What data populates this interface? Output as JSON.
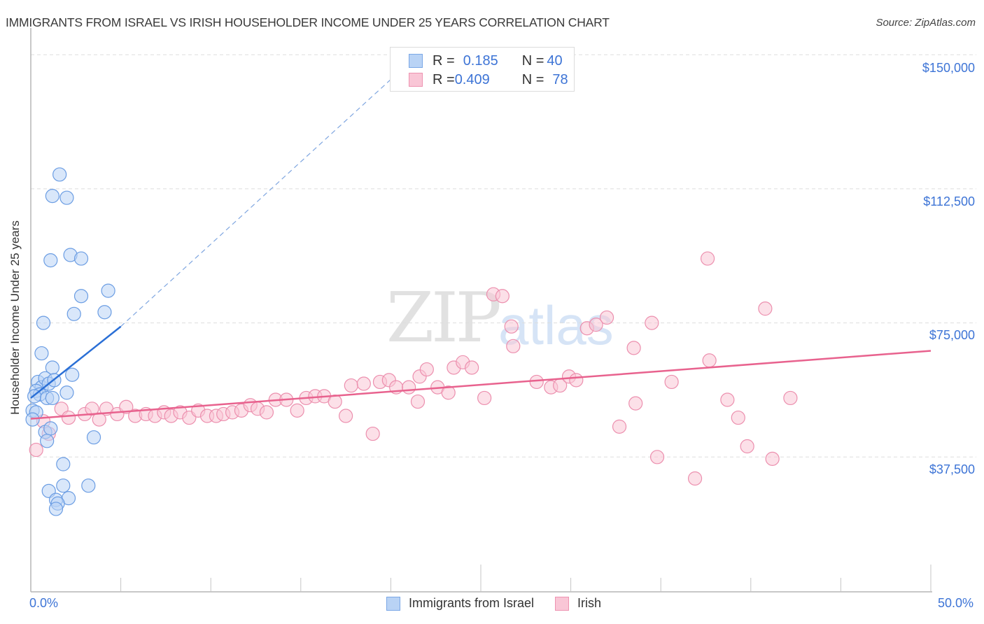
{
  "header": {
    "title": "IMMIGRANTS FROM ISRAEL VS IRISH HOUSEHOLDER INCOME UNDER 25 YEARS CORRELATION CHART",
    "source": "Source: ZipAtlas.com"
  },
  "legend_top": {
    "rows": [
      {
        "r_label": "R = ",
        "r_value": "0.185",
        "n_label": "N = ",
        "n_value": "40",
        "color": "#b9d3f5",
        "border": "#7aa7e6"
      },
      {
        "r_label": "R = ",
        "r_value": "0.409",
        "n_label": "N = ",
        "n_value": "78",
        "color": "#f9c6d6",
        "border": "#ee93b1"
      }
    ]
  },
  "legend_bottom": {
    "items": [
      {
        "label": "Immigrants from Israel",
        "color": "#b9d3f5",
        "border": "#7aa7e6"
      },
      {
        "label": "Irish",
        "color": "#f9c6d6",
        "border": "#ee93b1"
      }
    ]
  },
  "axes": {
    "y_title": "Householder Income Under 25 years",
    "y_ticks": [
      "$150,000",
      "$112,500",
      "$75,000",
      "$37,500"
    ],
    "x_min_label": "0.0%",
    "x_max_label": "50.0%"
  },
  "watermark": {
    "zip": "ZIP",
    "atlas": "atlas"
  },
  "colors": {
    "blue": "#3d74d6",
    "blue_line": "#2a6fd6",
    "pink_line": "#e8628e",
    "blue_fill": "#b9d3f5",
    "pink_fill": "#f9c6d6"
  },
  "chart_data": {
    "type": "scatter",
    "title": "IMMIGRANTS FROM ISRAEL VS IRISH HOUSEHOLDER INCOME UNDER 25 YEARS CORRELATION CHART",
    "xlabel": "",
    "ylabel": "Householder Income Under 25 years",
    "xlim": [
      0,
      50
    ],
    "ylim": [
      0,
      155000
    ],
    "x_unit": "%",
    "y_ticks": [
      37500,
      75000,
      112500,
      150000
    ],
    "grid": true,
    "legend_position": "bottom",
    "series": [
      {
        "name": "Immigrants from Israel",
        "R": 0.185,
        "N": 40,
        "color": "#b9d3f5",
        "trend": {
          "x": [
            0,
            5.0
          ],
          "y": [
            54000,
            74000
          ],
          "extended_dashed_to": [
            21.5,
            150000
          ]
        },
        "points": [
          [
            1.6,
            116500
          ],
          [
            1.2,
            110500
          ],
          [
            2.0,
            110000
          ],
          [
            1.1,
            92500
          ],
          [
            2.2,
            94000
          ],
          [
            2.8,
            93000
          ],
          [
            2.8,
            82500
          ],
          [
            2.4,
            77500
          ],
          [
            4.3,
            84000
          ],
          [
            4.1,
            78000
          ],
          [
            0.7,
            75000
          ],
          [
            0.6,
            66500
          ],
          [
            1.2,
            62500
          ],
          [
            2.3,
            60500
          ],
          [
            0.4,
            58500
          ],
          [
            0.6,
            57000
          ],
          [
            0.3,
            56000
          ],
          [
            0.8,
            59500
          ],
          [
            1.0,
            58000
          ],
          [
            1.3,
            59000
          ],
          [
            0.5,
            55000
          ],
          [
            0.2,
            54500
          ],
          [
            2.0,
            55500
          ],
          [
            0.9,
            54000
          ],
          [
            1.2,
            54000
          ],
          [
            0.1,
            50500
          ],
          [
            0.3,
            50000
          ],
          [
            0.8,
            44500
          ],
          [
            1.1,
            45500
          ],
          [
            0.9,
            42000
          ],
          [
            3.5,
            43000
          ],
          [
            1.8,
            35500
          ],
          [
            1.0,
            28000
          ],
          [
            1.8,
            29500
          ],
          [
            3.2,
            29500
          ],
          [
            1.4,
            25500
          ],
          [
            2.1,
            26000
          ],
          [
            1.5,
            24500
          ],
          [
            1.4,
            23000
          ],
          [
            0.1,
            48000
          ]
        ]
      },
      {
        "name": "Irish",
        "R": 0.409,
        "N": 78,
        "color": "#f9c6d6",
        "trend": {
          "x": [
            0,
            50
          ],
          "y": [
            48200,
            67200
          ]
        },
        "points": [
          [
            0.3,
            39500
          ],
          [
            1.7,
            51000
          ],
          [
            2.1,
            48500
          ],
          [
            3.0,
            49500
          ],
          [
            3.4,
            51000
          ],
          [
            3.8,
            48000
          ],
          [
            4.2,
            51000
          ],
          [
            4.8,
            49500
          ],
          [
            5.3,
            51500
          ],
          [
            5.8,
            49000
          ],
          [
            6.4,
            49500
          ],
          [
            6.9,
            49000
          ],
          [
            7.4,
            50000
          ],
          [
            7.8,
            49000
          ],
          [
            8.3,
            50000
          ],
          [
            8.8,
            48500
          ],
          [
            9.3,
            50500
          ],
          [
            9.8,
            49000
          ],
          [
            10.3,
            49000
          ],
          [
            10.7,
            49500
          ],
          [
            11.2,
            50000
          ],
          [
            11.7,
            50500
          ],
          [
            12.2,
            52000
          ],
          [
            12.6,
            51000
          ],
          [
            13.1,
            50000
          ],
          [
            13.6,
            53500
          ],
          [
            14.2,
            53500
          ],
          [
            14.8,
            50500
          ],
          [
            15.3,
            54000
          ],
          [
            15.8,
            54500
          ],
          [
            16.3,
            54500
          ],
          [
            16.9,
            53000
          ],
          [
            17.5,
            49000
          ],
          [
            17.8,
            57500
          ],
          [
            18.5,
            58000
          ],
          [
            19.0,
            44000
          ],
          [
            19.4,
            58500
          ],
          [
            19.9,
            59000
          ],
          [
            20.3,
            57000
          ],
          [
            21.0,
            57000
          ],
          [
            21.5,
            53000
          ],
          [
            21.6,
            60000
          ],
          [
            22.0,
            62000
          ],
          [
            22.6,
            57000
          ],
          [
            23.2,
            55500
          ],
          [
            23.5,
            62500
          ],
          [
            24.0,
            64000
          ],
          [
            24.5,
            62500
          ],
          [
            25.2,
            54000
          ],
          [
            25.7,
            83000
          ],
          [
            26.2,
            82500
          ],
          [
            26.7,
            74000
          ],
          [
            26.8,
            68500
          ],
          [
            28.1,
            58500
          ],
          [
            28.9,
            57000
          ],
          [
            29.4,
            57500
          ],
          [
            29.9,
            60000
          ],
          [
            30.3,
            59000
          ],
          [
            30.9,
            73500
          ],
          [
            31.4,
            74500
          ],
          [
            32.0,
            76500
          ],
          [
            32.7,
            46000
          ],
          [
            33.5,
            68000
          ],
          [
            33.6,
            52500
          ],
          [
            34.5,
            75000
          ],
          [
            34.8,
            37500
          ],
          [
            35.6,
            58500
          ],
          [
            36.9,
            31500
          ],
          [
            37.7,
            64500
          ],
          [
            37.6,
            93000
          ],
          [
            38.7,
            53500
          ],
          [
            39.3,
            48500
          ],
          [
            39.8,
            40500
          ],
          [
            40.8,
            79000
          ],
          [
            41.2,
            37000
          ],
          [
            42.2,
            54000
          ],
          [
            1.0,
            44000
          ],
          [
            0.7,
            47500
          ]
        ]
      }
    ]
  }
}
